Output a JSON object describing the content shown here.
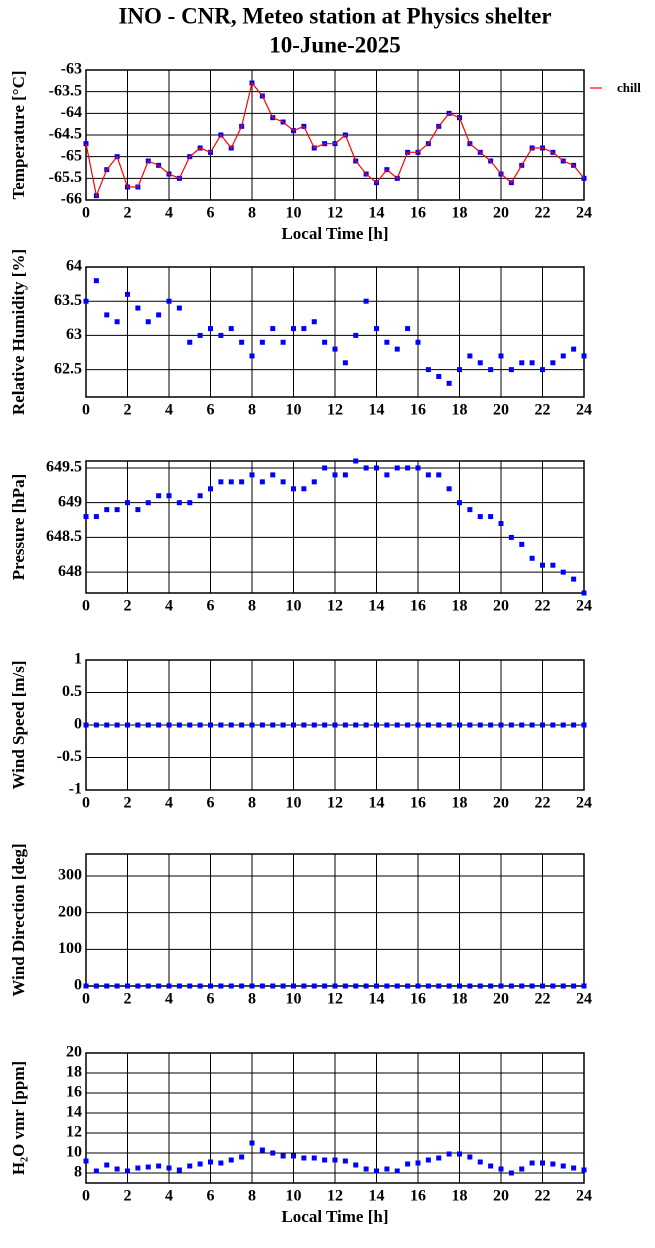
{
  "chart_data": [
    {
      "type": "line",
      "title": "INO - CNR, Meteo station at Physics shelter",
      "subtitle": "10-June-2025",
      "ylabel": "Temperature [°C]",
      "xlabel": "Local Time [h]",
      "x": [
        0,
        0.5,
        1,
        1.5,
        2,
        2.5,
        3,
        3.5,
        4,
        4.5,
        5,
        5.5,
        6,
        6.5,
        7,
        7.5,
        8,
        8.5,
        9,
        9.5,
        10,
        10.5,
        11,
        11.5,
        12,
        12.5,
        13,
        13.5,
        14,
        14.5,
        15,
        15.5,
        16,
        16.5,
        17,
        17.5,
        18,
        18.5,
        19,
        19.5,
        20,
        20.5,
        21,
        21.5,
        22,
        22.5,
        23,
        23.5,
        24
      ],
      "series": [
        {
          "color": "#0000ff",
          "style": "points",
          "values": [
            -64.7,
            -65.9,
            -65.3,
            -65,
            -65.7,
            -65.7,
            -65.1,
            -65.2,
            -65.4,
            -65.5,
            -65,
            -64.8,
            -64.9,
            -64.5,
            -64.8,
            -64.3,
            -63.3,
            -63.6,
            -64.1,
            -64.2,
            -64.4,
            -64.3,
            -64.8,
            -64.7,
            -64.7,
            -64.5,
            -65.1,
            -65.4,
            -65.6,
            -65.3,
            -65.5,
            -64.9,
            -64.9,
            -64.7,
            -64.3,
            -64,
            -64.1,
            -64.7,
            -64.9,
            -65.1,
            -65.4,
            -65.6,
            -65.2,
            -64.8,
            -64.8,
            -64.9,
            -65.1,
            -65.2,
            -65.5
          ]
        },
        {
          "name": "chill",
          "color": "#ff0000",
          "style": "line",
          "values": [
            -64.7,
            -65.9,
            -65.3,
            -65,
            -65.7,
            -65.7,
            -65.1,
            -65.2,
            -65.4,
            -65.5,
            -65,
            -64.8,
            -64.9,
            -64.5,
            -64.8,
            -64.3,
            -63.3,
            -63.6,
            -64.1,
            -64.2,
            -64.4,
            -64.3,
            -64.8,
            -64.7,
            -64.7,
            -64.5,
            -65.1,
            -65.4,
            -65.6,
            -65.3,
            -65.5,
            -64.9,
            -64.9,
            -64.7,
            -64.3,
            -64,
            -64.1,
            -64.7,
            -64.9,
            -65.1,
            -65.4,
            -65.6,
            -65.2,
            -64.8,
            -64.8,
            -64.9,
            -65.1,
            -65.2,
            -65.5
          ]
        }
      ],
      "legend": "right",
      "grid": true,
      "xlim": [
        0,
        24
      ],
      "xticks": [
        0,
        2,
        4,
        6,
        8,
        10,
        12,
        14,
        16,
        18,
        20,
        22,
        24
      ],
      "ylim": [
        -66,
        -63
      ],
      "yticks": [
        -66,
        -65.5,
        -65,
        -64.5,
        -64,
        -63.5,
        -63
      ]
    },
    {
      "type": "line",
      "ylabel": "Relative Humidity [%]",
      "x": [
        0,
        0.5,
        1,
        1.5,
        2,
        2.5,
        3,
        3.5,
        4,
        4.5,
        5,
        5.5,
        6,
        6.5,
        7,
        7.5,
        8,
        8.5,
        9,
        9.5,
        10,
        10.5,
        11,
        11.5,
        12,
        12.5,
        13,
        13.5,
        14,
        14.5,
        15,
        15.5,
        16,
        16.5,
        17,
        17.5,
        18,
        18.5,
        19,
        19.5,
        20,
        20.5,
        21,
        21.5,
        22,
        22.5,
        23,
        23.5,
        24
      ],
      "series": [
        {
          "color": "#0000ff",
          "style": "points",
          "values": [
            63.5,
            63.8,
            63.3,
            63.2,
            63.6,
            63.4,
            63.2,
            63.3,
            63.5,
            63.4,
            62.9,
            63,
            63.1,
            63,
            63.1,
            62.9,
            62.7,
            62.9,
            63.1,
            62.9,
            63.1,
            63.1,
            63.2,
            62.9,
            62.8,
            62.6,
            63,
            63.5,
            63.1,
            62.9,
            62.8,
            63.1,
            62.9,
            62.5,
            62.4,
            62.3,
            62.5,
            62.7,
            62.6,
            62.5,
            62.7,
            62.5,
            62.6,
            62.6,
            62.5,
            62.6,
            62.7,
            62.8,
            62.7
          ]
        }
      ],
      "grid": true,
      "xlim": [
        0,
        24
      ],
      "xticks": [
        0,
        2,
        4,
        6,
        8,
        10,
        12,
        14,
        16,
        18,
        20,
        22,
        24
      ],
      "ylim": [
        62.1,
        64
      ],
      "yticks": [
        62.5,
        63,
        63.5,
        64
      ]
    },
    {
      "type": "line",
      "ylabel": "Pressure [hPa]",
      "x": [
        0,
        0.5,
        1,
        1.5,
        2,
        2.5,
        3,
        3.5,
        4,
        4.5,
        5,
        5.5,
        6,
        6.5,
        7,
        7.5,
        8,
        8.5,
        9,
        9.5,
        10,
        10.5,
        11,
        11.5,
        12,
        12.5,
        13,
        13.5,
        14,
        14.5,
        15,
        15.5,
        16,
        16.5,
        17,
        17.5,
        18,
        18.5,
        19,
        19.5,
        20,
        20.5,
        21,
        21.5,
        22,
        22.5,
        23,
        23.5,
        24
      ],
      "series": [
        {
          "color": "#0000ff",
          "style": "points",
          "values": [
            648.8,
            648.8,
            648.9,
            648.9,
            649,
            648.9,
            649,
            649.1,
            649.1,
            649,
            649,
            649.1,
            649.2,
            649.3,
            649.3,
            649.3,
            649.4,
            649.3,
            649.4,
            649.3,
            649.2,
            649.2,
            649.3,
            649.5,
            649.4,
            649.4,
            649.6,
            649.5,
            649.5,
            649.4,
            649.5,
            649.5,
            649.5,
            649.4,
            649.4,
            649.2,
            649,
            648.9,
            648.8,
            648.8,
            648.7,
            648.5,
            648.4,
            648.2,
            648.1,
            648.1,
            648,
            647.9,
            647.7
          ]
        }
      ],
      "grid": true,
      "xlim": [
        0,
        24
      ],
      "xticks": [
        0,
        2,
        4,
        6,
        8,
        10,
        12,
        14,
        16,
        18,
        20,
        22,
        24
      ],
      "ylim": [
        647.7,
        649.6
      ],
      "yticks": [
        648,
        648.5,
        649,
        649.5
      ]
    },
    {
      "type": "line",
      "ylabel": "Wind Speed [m/s]",
      "x": [
        0,
        0.5,
        1,
        1.5,
        2,
        2.5,
        3,
        3.5,
        4,
        4.5,
        5,
        5.5,
        6,
        6.5,
        7,
        7.5,
        8,
        8.5,
        9,
        9.5,
        10,
        10.5,
        11,
        11.5,
        12,
        12.5,
        13,
        13.5,
        14,
        14.5,
        15,
        15.5,
        16,
        16.5,
        17,
        17.5,
        18,
        18.5,
        19,
        19.5,
        20,
        20.5,
        21,
        21.5,
        22,
        22.5,
        23,
        23.5,
        24
      ],
      "series": [
        {
          "color": "#0000ff",
          "style": "points",
          "values": [
            0,
            0,
            0,
            0,
            0,
            0,
            0,
            0,
            0,
            0,
            0,
            0,
            0,
            0,
            0,
            0,
            0,
            0,
            0,
            0,
            0,
            0,
            0,
            0,
            0,
            0,
            0,
            0,
            0,
            0,
            0,
            0,
            0,
            0,
            0,
            0,
            0,
            0,
            0,
            0,
            0,
            0,
            0,
            0,
            0,
            0,
            0,
            0,
            0
          ]
        }
      ],
      "grid": true,
      "xlim": [
        0,
        24
      ],
      "xticks": [
        0,
        2,
        4,
        6,
        8,
        10,
        12,
        14,
        16,
        18,
        20,
        22,
        24
      ],
      "ylim": [
        -1,
        1
      ],
      "yticks": [
        -1,
        -0.5,
        0,
        0.5,
        1
      ]
    },
    {
      "type": "line",
      "ylabel": "Wind Direction [deg]",
      "x": [
        0,
        0.5,
        1,
        1.5,
        2,
        2.5,
        3,
        3.5,
        4,
        4.5,
        5,
        5.5,
        6,
        6.5,
        7,
        7.5,
        8,
        8.5,
        9,
        9.5,
        10,
        10.5,
        11,
        11.5,
        12,
        12.5,
        13,
        13.5,
        14,
        14.5,
        15,
        15.5,
        16,
        16.5,
        17,
        17.5,
        18,
        18.5,
        19,
        19.5,
        20,
        20.5,
        21,
        21.5,
        22,
        22.5,
        23,
        23.5,
        24
      ],
      "series": [
        {
          "color": "#0000ff",
          "style": "points",
          "values": [
            0,
            0,
            0,
            0,
            0,
            0,
            0,
            0,
            0,
            0,
            0,
            0,
            0,
            0,
            0,
            0,
            0,
            0,
            0,
            0,
            0,
            0,
            0,
            0,
            0,
            0,
            0,
            0,
            0,
            0,
            0,
            0,
            0,
            0,
            0,
            0,
            0,
            0,
            0,
            0,
            0,
            0,
            0,
            0,
            0,
            0,
            0,
            0,
            0
          ]
        }
      ],
      "grid": true,
      "xlim": [
        0,
        24
      ],
      "xticks": [
        0,
        2,
        4,
        6,
        8,
        10,
        12,
        14,
        16,
        18,
        20,
        22,
        24
      ],
      "ylim": [
        0,
        360
      ],
      "yticks": [
        0,
        100,
        200,
        300
      ]
    },
    {
      "type": "line",
      "ylabel": "H₂O vmr [ppm]",
      "xlabel": "Local Time [h]",
      "x": [
        0,
        0.5,
        1,
        1.5,
        2,
        2.5,
        3,
        3.5,
        4,
        4.5,
        5,
        5.5,
        6,
        6.5,
        7,
        7.5,
        8,
        8.5,
        9,
        9.5,
        10,
        10.5,
        11,
        11.5,
        12,
        12.5,
        13,
        13.5,
        14,
        14.5,
        15,
        15.5,
        16,
        16.5,
        17,
        17.5,
        18,
        18.5,
        19,
        19.5,
        20,
        20.5,
        21,
        21.5,
        22,
        22.5,
        23,
        23.5,
        24
      ],
      "series": [
        {
          "color": "#0000ff",
          "style": "points",
          "values": [
            9.2,
            8.2,
            8.8,
            8.4,
            8.2,
            8.5,
            8.6,
            8.7,
            8.5,
            8.3,
            8.7,
            8.9,
            9.1,
            9,
            9.3,
            9.6,
            11,
            10.3,
            10,
            9.7,
            9.7,
            9.5,
            9.5,
            9.3,
            9.3,
            9.2,
            8.8,
            8.4,
            8.2,
            8.4,
            8.2,
            8.9,
            9,
            9.3,
            9.5,
            9.9,
            9.9,
            9.6,
            9.1,
            8.7,
            8.4,
            8,
            8.4,
            9,
            9,
            8.9,
            8.7,
            8.5,
            8.3
          ]
        }
      ],
      "grid": true,
      "xlim": [
        0,
        24
      ],
      "xticks": [
        0,
        2,
        4,
        6,
        8,
        10,
        12,
        14,
        16,
        18,
        20,
        22,
        24
      ],
      "ylim": [
        7,
        20
      ],
      "yticks": [
        8,
        10,
        12,
        14,
        16,
        18,
        20
      ]
    }
  ]
}
